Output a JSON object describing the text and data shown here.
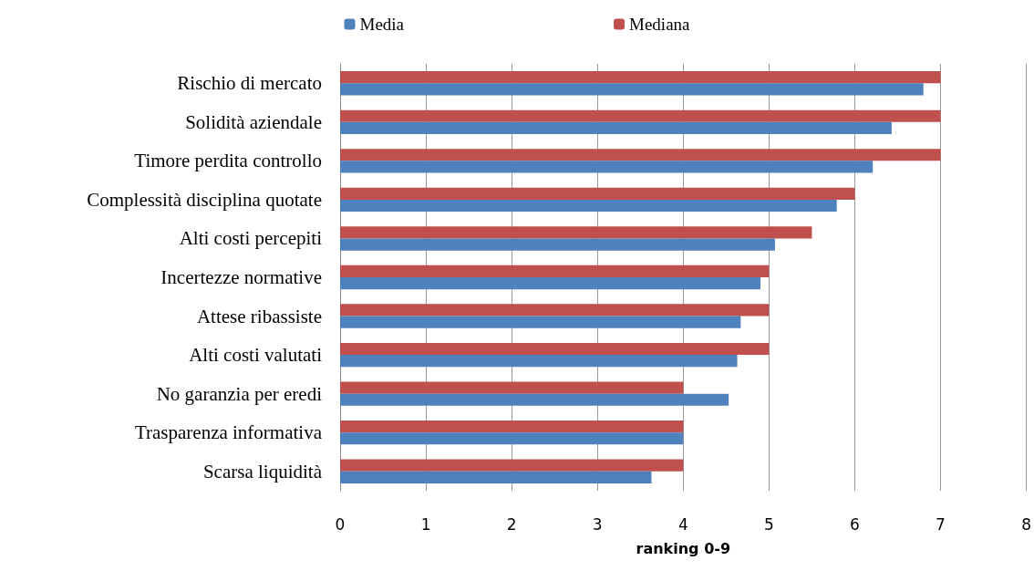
{
  "chart_data": {
    "type": "bar",
    "orientation": "horizontal",
    "xlabel": "ranking 0-9",
    "categories": [
      "Rischio di mercato",
      "Solidità aziendale",
      "Timore perdita controllo",
      "Complessità disciplina quotate",
      "Alti costi percepiti",
      "Incertezze normative",
      "Attese ribassiste",
      "Alti costi valutati",
      "No garanzia per eredi",
      "Trasparenza informativa",
      "Scarsa liquidità"
    ],
    "series": [
      {
        "name": "Media",
        "color": "#4f81bd",
        "values": [
          6.8,
          6.43,
          6.21,
          5.79,
          5.07,
          4.9,
          4.67,
          4.63,
          4.53,
          4,
          3.63
        ]
      },
      {
        "name": "Mediana",
        "color": "#c0504d",
        "values": [
          7,
          7,
          7,
          6,
          5.5,
          5,
          5,
          5,
          4,
          4,
          4
        ]
      }
    ],
    "xlim": [
      0,
      8
    ],
    "xticks": [
      0,
      1,
      2,
      3,
      4,
      5,
      6,
      7,
      8
    ],
    "grid": "x",
    "legend": "top"
  }
}
